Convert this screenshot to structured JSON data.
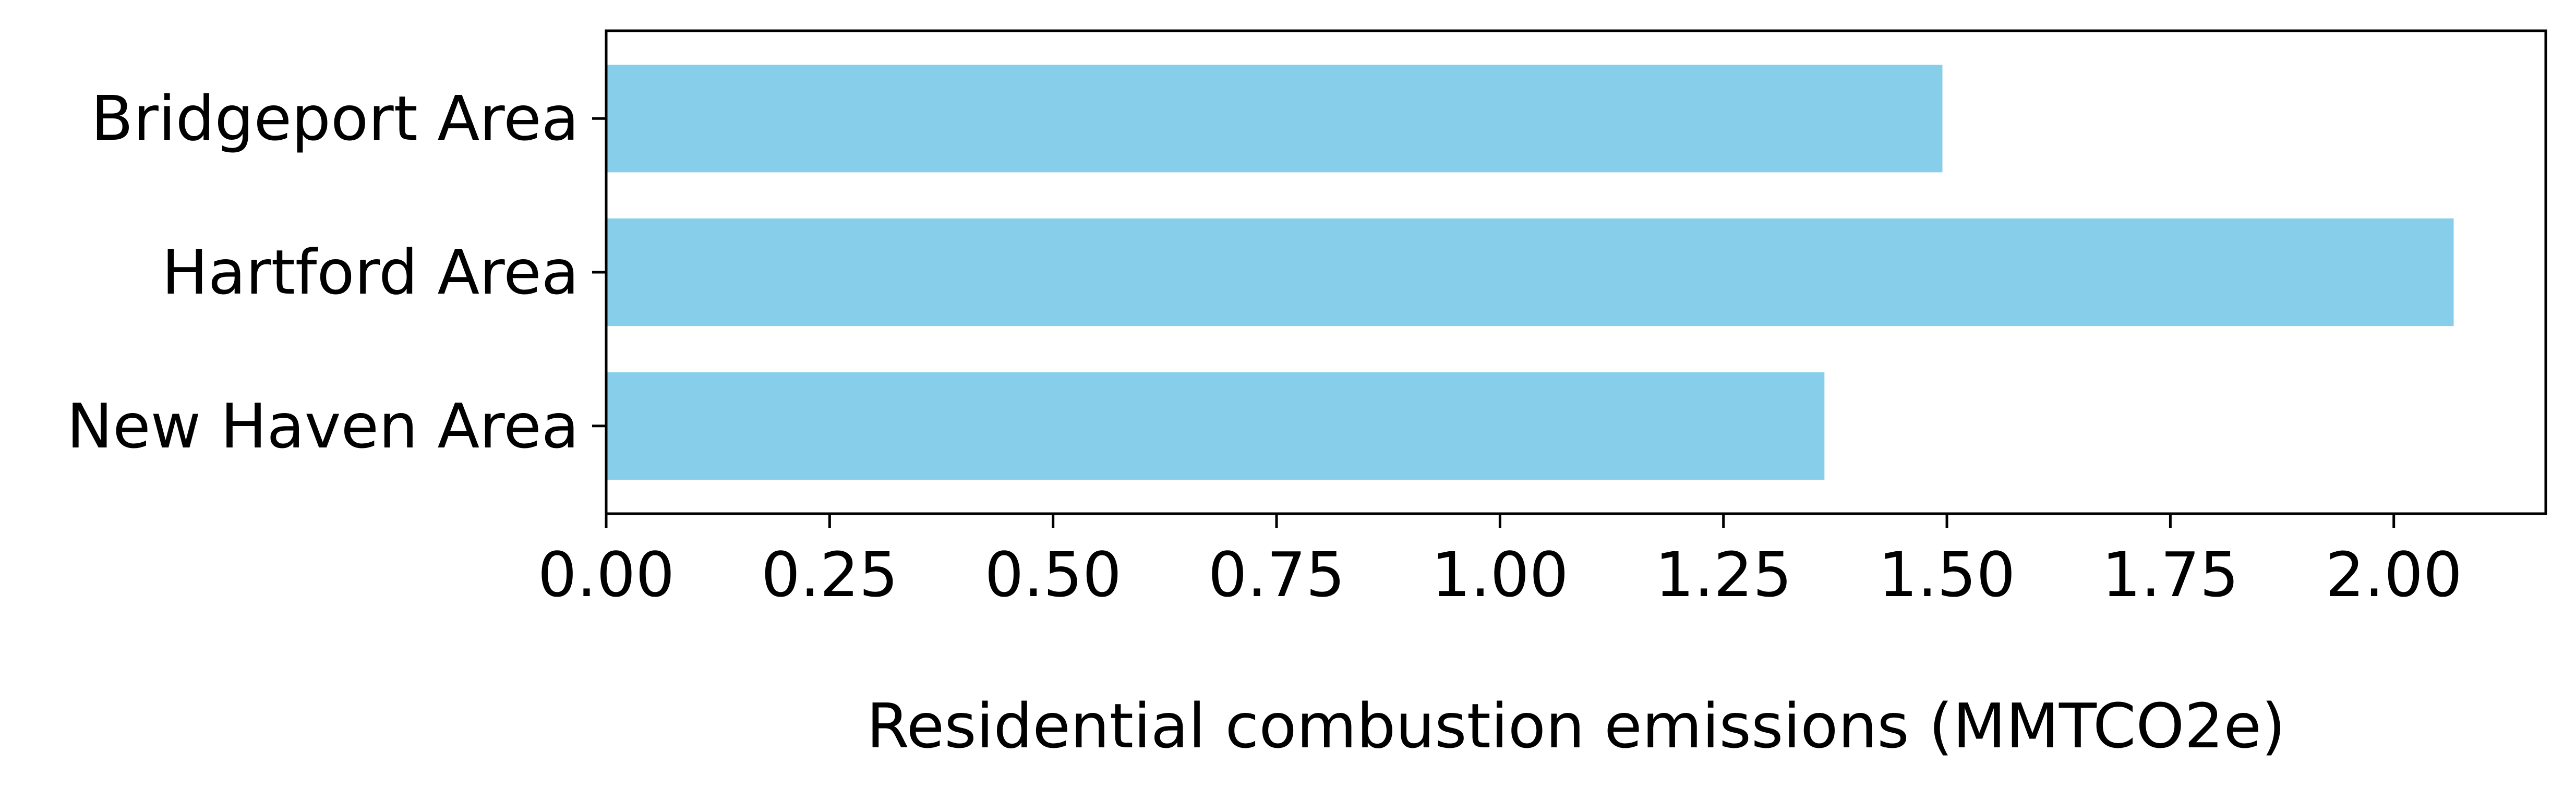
{
  "chart_data": {
    "type": "bar",
    "orientation": "horizontal",
    "categories": [
      "Bridgeport Area",
      "Hartford Area",
      "New Haven Area"
    ],
    "values": [
      1.495,
      2.067,
      1.363
    ],
    "title": "",
    "xlabel": "Residential combustion emissions (MMTCO2e)",
    "ylabel": "",
    "xlim": [
      0,
      2.17
    ],
    "xticks": [
      0,
      0.25,
      0.5,
      0.75,
      1.0,
      1.25,
      1.5,
      1.75,
      2.0
    ],
    "xtick_labels": [
      "0.00",
      "0.25",
      "0.50",
      "0.75",
      "1.00",
      "1.25",
      "1.50",
      "1.75",
      "2.00"
    ],
    "bar_color": "#87ceeb",
    "grid": false,
    "legend": "none"
  }
}
